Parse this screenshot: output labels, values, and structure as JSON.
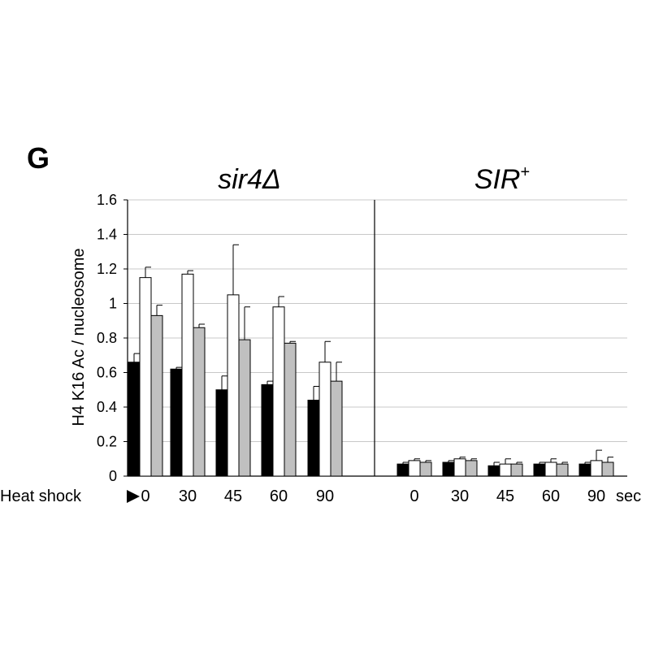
{
  "panel_letter": "G",
  "row_label": "Heat shock",
  "unit": "sec",
  "chart_data": {
    "type": "bar",
    "ylabel": "H4 K16 Ac / nucleosome",
    "ylim": [
      0,
      1.6
    ],
    "yticks": [
      "0",
      "0.2",
      "0.4",
      "0.6",
      "0.8",
      "1",
      "1.2",
      "1.4",
      "1.6"
    ],
    "grid": true,
    "series_colors": [
      "#000000",
      "#ffffff",
      "#c0c0c0"
    ],
    "panels": [
      {
        "title": "sir4Δ",
        "categories": [
          "0",
          "30",
          "45",
          "60",
          "90"
        ],
        "series": [
          {
            "values": [
              0.66,
              0.62,
              0.5,
              0.53,
              0.44
            ],
            "errors": [
              0.05,
              0.01,
              0.08,
              0.02,
              0.08
            ]
          },
          {
            "values": [
              1.15,
              1.17,
              1.05,
              0.98,
              0.66
            ],
            "errors": [
              0.06,
              0.02,
              0.29,
              0.06,
              0.12
            ]
          },
          {
            "values": [
              0.93,
              0.86,
              0.79,
              0.77,
              0.55
            ],
            "errors": [
              0.06,
              0.02,
              0.19,
              0.01,
              0.11
            ]
          }
        ]
      },
      {
        "title": "SIR+",
        "categories": [
          "0",
          "30",
          "45",
          "60",
          "90"
        ],
        "series": [
          {
            "values": [
              0.07,
              0.08,
              0.06,
              0.07,
              0.07
            ],
            "errors": [
              0.01,
              0.01,
              0.02,
              0.01,
              0.01
            ]
          },
          {
            "values": [
              0.09,
              0.1,
              0.07,
              0.08,
              0.09
            ],
            "errors": [
              0.01,
              0.01,
              0.03,
              0.02,
              0.06
            ]
          },
          {
            "values": [
              0.08,
              0.09,
              0.07,
              0.07,
              0.08
            ],
            "errors": [
              0.01,
              0.01,
              0.01,
              0.01,
              0.03
            ]
          }
        ]
      }
    ]
  }
}
